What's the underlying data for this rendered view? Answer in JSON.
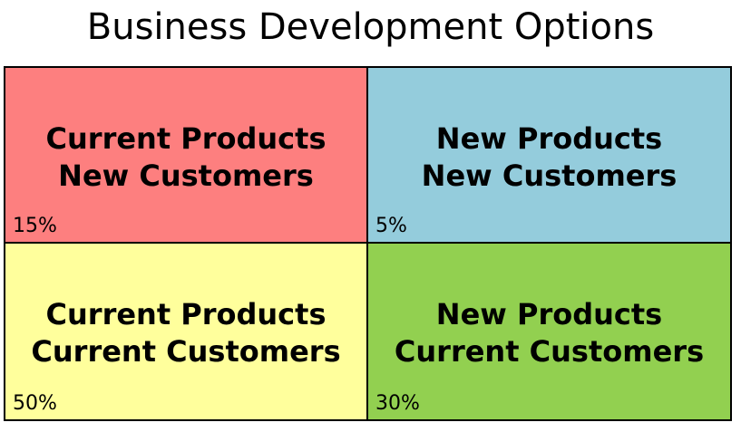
{
  "title": "Business Development Options",
  "quadrants": [
    {
      "position": "top-left",
      "line1": "Current Products",
      "line2": "New Customers",
      "percent": "15%",
      "color": "#fd7f7f"
    },
    {
      "position": "top-right",
      "line1": "New Products",
      "line2": "New Customers",
      "percent": "5%",
      "color": "#94ccdc"
    },
    {
      "position": "bottom-left",
      "line1": "Current Products",
      "line2": "Current Customers",
      "percent": "50%",
      "color": "#ffff9c"
    },
    {
      "position": "bottom-right",
      "line1": "New Products",
      "line2": "Current Customers",
      "percent": "30%",
      "color": "#92d050"
    }
  ]
}
